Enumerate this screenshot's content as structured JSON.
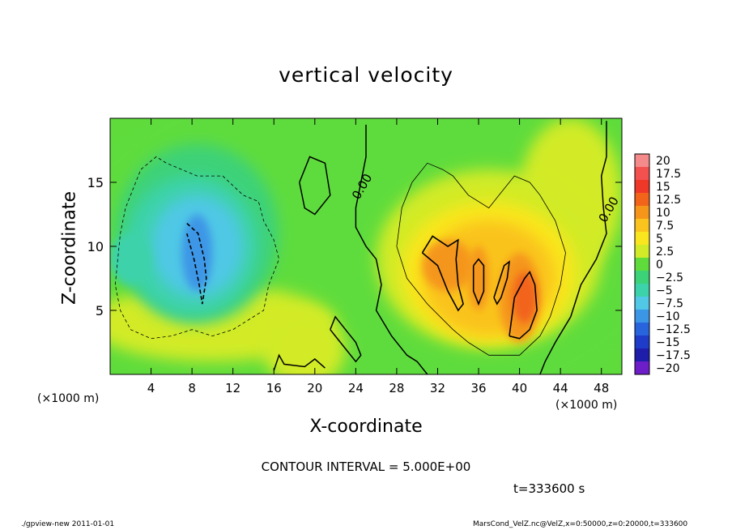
{
  "chart_data": {
    "type": "heatmap",
    "title": "vertical velocity",
    "xlabel": "X-coordinate",
    "ylabel": "Z-coordinate",
    "x_unit_label": "(×1000 m)",
    "xlim": [
      0,
      50
    ],
    "ylim": [
      0,
      20
    ],
    "x_ticks": [
      4,
      8,
      12,
      16,
      20,
      24,
      28,
      32,
      36,
      40,
      44,
      48
    ],
    "y_ticks": [
      5,
      10,
      15
    ],
    "colorbar_levels": [
      "20",
      "17.5",
      "15",
      "12.5",
      "10",
      "7.5",
      "5",
      "2.5",
      "0",
      "−2.5",
      "−5",
      "−7.5",
      "−10",
      "−12.5",
      "−15",
      "−17.5",
      "−20"
    ],
    "colorbar_colors": [
      "#f58a8a",
      "#f35050",
      "#f03828",
      "#f2641a",
      "#f5961a",
      "#fac31e",
      "#fae61e",
      "#d2eb28",
      "#5fdc3c",
      "#3cd278",
      "#3cd2aa",
      "#50c8e6",
      "#3c96e6",
      "#2864dc",
      "#1e3cc8",
      "#1e1eaa",
      "#6e1ec8"
    ],
    "contour_labels": [
      "0.00",
      "0.00"
    ],
    "contour_interval": "CONTOUR INTERVAL = 5.000E+00",
    "time": "t=333600 s",
    "regions": [
      {
        "x": 7.5,
        "z": 10,
        "value": -7.5
      },
      {
        "x": 2,
        "z": 9,
        "value": -5
      },
      {
        "x": 33,
        "z": 8,
        "value": 10
      },
      {
        "x": 40,
        "z": 6,
        "value": 12.5
      },
      {
        "x": 20,
        "z": 2,
        "value": 2.5
      }
    ]
  },
  "footer": {
    "left": "./gpview-new   2011-01-01",
    "right": "MarsCond_VelZ.nc@VelZ,x=0:50000,z=0:20000,t=333600"
  }
}
